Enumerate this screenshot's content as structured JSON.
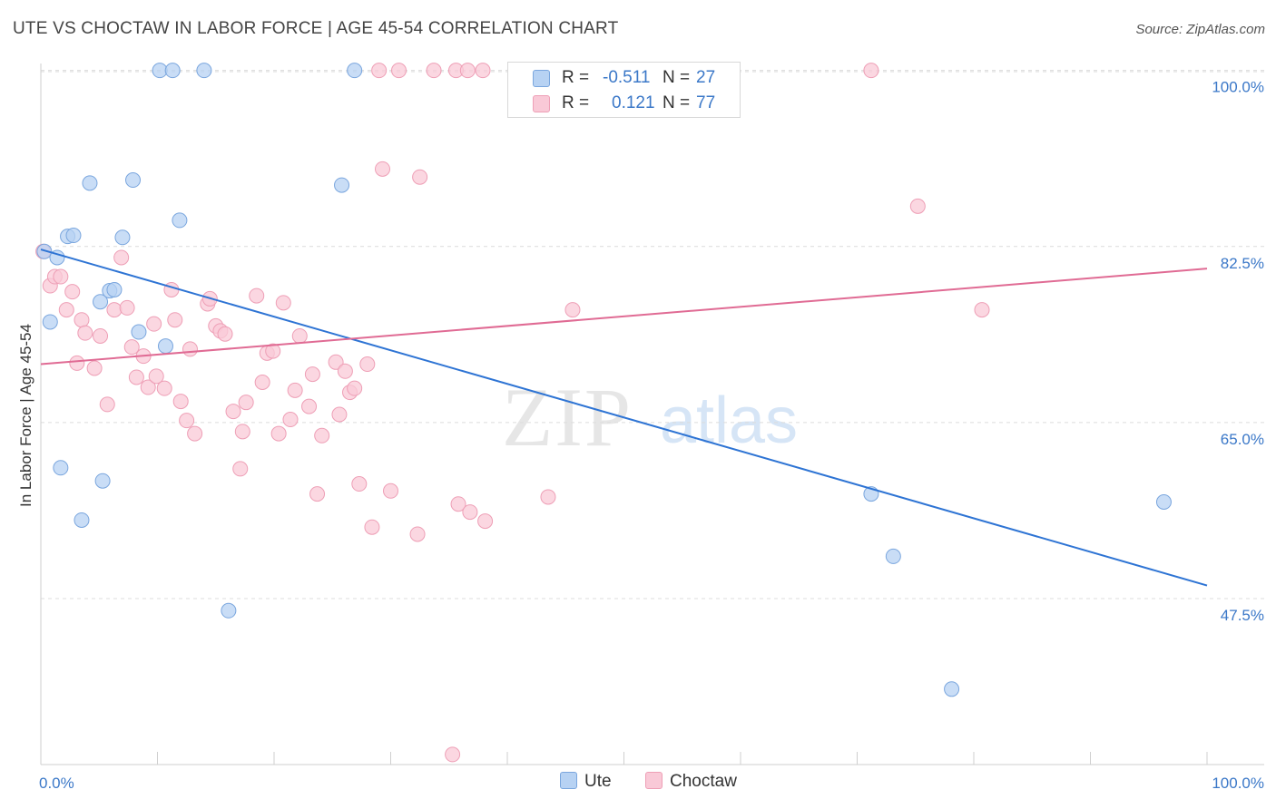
{
  "title": "UTE VS CHOCTAW IN LABOR FORCE | AGE 45-54 CORRELATION CHART",
  "source": "Source: ZipAtlas.com",
  "watermark": {
    "zip": "ZIP",
    "atlas": "atlas"
  },
  "legend_top": [
    {
      "label": "R =",
      "r": "-0.511",
      "n_label": "N =",
      "n": "27"
    },
    {
      "label": "R =",
      "r": "0.121",
      "n_label": "N =",
      "n": "77"
    }
  ],
  "legend_bottom": [
    "Ute",
    "Choctaw"
  ],
  "colors": {
    "ute_fill": "#b7d2f3",
    "ute_stroke": "#7aa6de",
    "ute_line": "#2e74d4",
    "choctaw_fill": "#f9c9d7",
    "choctaw_stroke": "#ee9fb6",
    "choctaw_line": "#e06b94",
    "tick_label": "#3b78c8",
    "grid": "#dcdcdc"
  },
  "chart_data": {
    "type": "scatter",
    "title": "UTE VS CHOCTAW IN LABOR FORCE | AGE 45-54 CORRELATION CHART",
    "xlabel": "",
    "ylabel": "In Labor Force | Age 45-54",
    "xlim": [
      0,
      100
    ],
    "ylim": [
      31,
      101.5
    ],
    "x_tick_labels": [
      "0.0%",
      "100.0%"
    ],
    "y_ticks": [
      47.5,
      65.0,
      82.5,
      100.0
    ],
    "y_tick_labels": [
      "47.5%",
      "65.0%",
      "82.5%",
      "100.0%"
    ],
    "grid": true,
    "series": [
      {
        "name": "Ute",
        "r": -0.511,
        "n": 27,
        "trend": {
          "x": [
            0,
            100
          ],
          "y": [
            82.2,
            48.8
          ]
        },
        "points": [
          [
            0.3,
            82.0
          ],
          [
            0.8,
            75.0
          ],
          [
            1.4,
            81.4
          ],
          [
            1.7,
            60.5
          ],
          [
            2.3,
            83.5
          ],
          [
            2.8,
            83.6
          ],
          [
            3.5,
            55.3
          ],
          [
            4.2,
            88.8
          ],
          [
            5.1,
            77.0
          ],
          [
            5.3,
            59.2
          ],
          [
            5.9,
            78.1
          ],
          [
            6.3,
            78.2
          ],
          [
            7.0,
            83.4
          ],
          [
            7.9,
            89.1
          ],
          [
            8.4,
            74.0
          ],
          [
            10.2,
            100.0
          ],
          [
            10.7,
            72.6
          ],
          [
            11.3,
            100.0
          ],
          [
            11.9,
            85.1
          ],
          [
            14.0,
            100.0
          ],
          [
            16.1,
            46.3
          ],
          [
            25.8,
            88.6
          ],
          [
            26.9,
            100.0
          ],
          [
            71.2,
            57.9
          ],
          [
            73.1,
            51.7
          ],
          [
            78.1,
            38.5
          ],
          [
            96.3,
            57.1
          ]
        ]
      },
      {
        "name": "Choctaw",
        "r": 0.121,
        "n": 77,
        "trend": {
          "x": [
            0,
            100
          ],
          "y": [
            70.8,
            80.3
          ]
        },
        "points": [
          [
            0.2,
            82.0
          ],
          [
            0.8,
            78.6
          ],
          [
            1.2,
            79.5
          ],
          [
            1.7,
            79.5
          ],
          [
            2.2,
            76.2
          ],
          [
            2.7,
            78.0
          ],
          [
            3.1,
            70.9
          ],
          [
            3.5,
            75.2
          ],
          [
            3.8,
            73.9
          ],
          [
            4.6,
            70.4
          ],
          [
            5.1,
            73.6
          ],
          [
            5.7,
            66.8
          ],
          [
            6.3,
            76.2
          ],
          [
            6.9,
            81.4
          ],
          [
            7.4,
            76.4
          ],
          [
            7.8,
            72.5
          ],
          [
            8.2,
            69.5
          ],
          [
            8.8,
            71.6
          ],
          [
            9.2,
            68.5
          ],
          [
            9.7,
            74.8
          ],
          [
            9.9,
            69.6
          ],
          [
            10.6,
            68.4
          ],
          [
            11.2,
            78.2
          ],
          [
            11.5,
            75.2
          ],
          [
            12.0,
            67.1
          ],
          [
            12.5,
            65.2
          ],
          [
            12.8,
            72.3
          ],
          [
            13.2,
            63.9
          ],
          [
            14.3,
            76.8
          ],
          [
            14.5,
            77.3
          ],
          [
            15.0,
            74.6
          ],
          [
            15.4,
            74.1
          ],
          [
            15.8,
            73.8
          ],
          [
            16.5,
            66.1
          ],
          [
            17.1,
            60.4
          ],
          [
            17.3,
            64.1
          ],
          [
            17.6,
            67.0
          ],
          [
            18.5,
            77.6
          ],
          [
            19.0,
            69.0
          ],
          [
            19.4,
            71.9
          ],
          [
            19.9,
            72.1
          ],
          [
            20.4,
            63.9
          ],
          [
            20.8,
            76.9
          ],
          [
            21.4,
            65.3
          ],
          [
            21.8,
            68.2
          ],
          [
            22.2,
            73.6
          ],
          [
            23.0,
            66.6
          ],
          [
            23.3,
            69.8
          ],
          [
            23.7,
            57.9
          ],
          [
            24.1,
            63.7
          ],
          [
            25.3,
            71.0
          ],
          [
            25.6,
            65.8
          ],
          [
            26.1,
            70.1
          ],
          [
            26.5,
            68.0
          ],
          [
            26.9,
            68.4
          ],
          [
            27.3,
            58.9
          ],
          [
            28.0,
            70.8
          ],
          [
            28.4,
            54.6
          ],
          [
            29.0,
            100.0
          ],
          [
            29.3,
            90.2
          ],
          [
            30.0,
            58.2
          ],
          [
            30.7,
            100.0
          ],
          [
            32.3,
            53.9
          ],
          [
            32.5,
            89.4
          ],
          [
            33.7,
            100.0
          ],
          [
            35.3,
            32.0
          ],
          [
            35.6,
            100.0
          ],
          [
            35.8,
            56.9
          ],
          [
            36.6,
            100.0
          ],
          [
            36.8,
            56.1
          ],
          [
            37.9,
            100.0
          ],
          [
            38.1,
            55.2
          ],
          [
            43.5,
            57.6
          ],
          [
            45.6,
            76.2
          ],
          [
            71.2,
            100.0
          ],
          [
            75.2,
            86.5
          ],
          [
            80.7,
            76.2
          ]
        ]
      }
    ]
  }
}
